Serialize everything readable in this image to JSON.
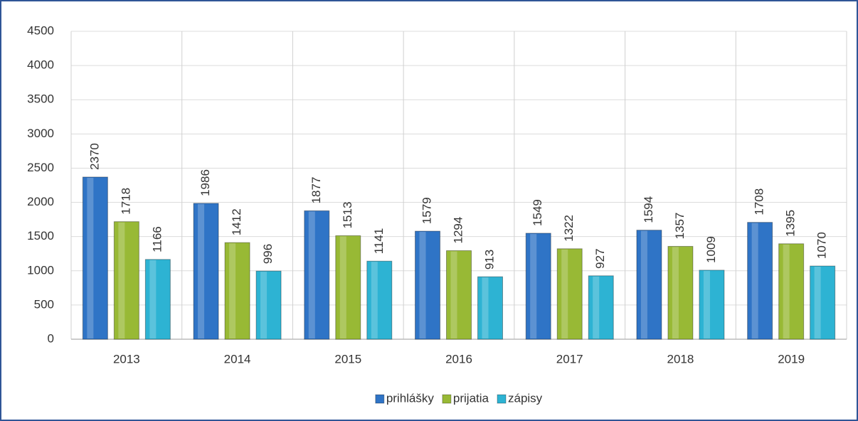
{
  "chart_data": {
    "type": "bar",
    "categories": [
      "2013",
      "2014",
      "2015",
      "2016",
      "2017",
      "2018",
      "2019"
    ],
    "series": [
      {
        "name": "prihlášky",
        "color": "#2f74c6",
        "values": [
          2370,
          1986,
          1877,
          1579,
          1549,
          1594,
          1708
        ]
      },
      {
        "name": "prijatia",
        "color": "#98b935",
        "values": [
          1718,
          1412,
          1513,
          1294,
          1322,
          1357,
          1395
        ]
      },
      {
        "name": "zápisy",
        "color": "#2db3d3",
        "values": [
          1166,
          996,
          1141,
          913,
          927,
          1009,
          1070
        ]
      }
    ],
    "ylim": [
      0,
      4500
    ],
    "yticks": [
      0,
      500,
      1000,
      1500,
      2000,
      2500,
      3000,
      3500,
      4000,
      4500
    ],
    "grid": true,
    "legend": "bottom"
  }
}
